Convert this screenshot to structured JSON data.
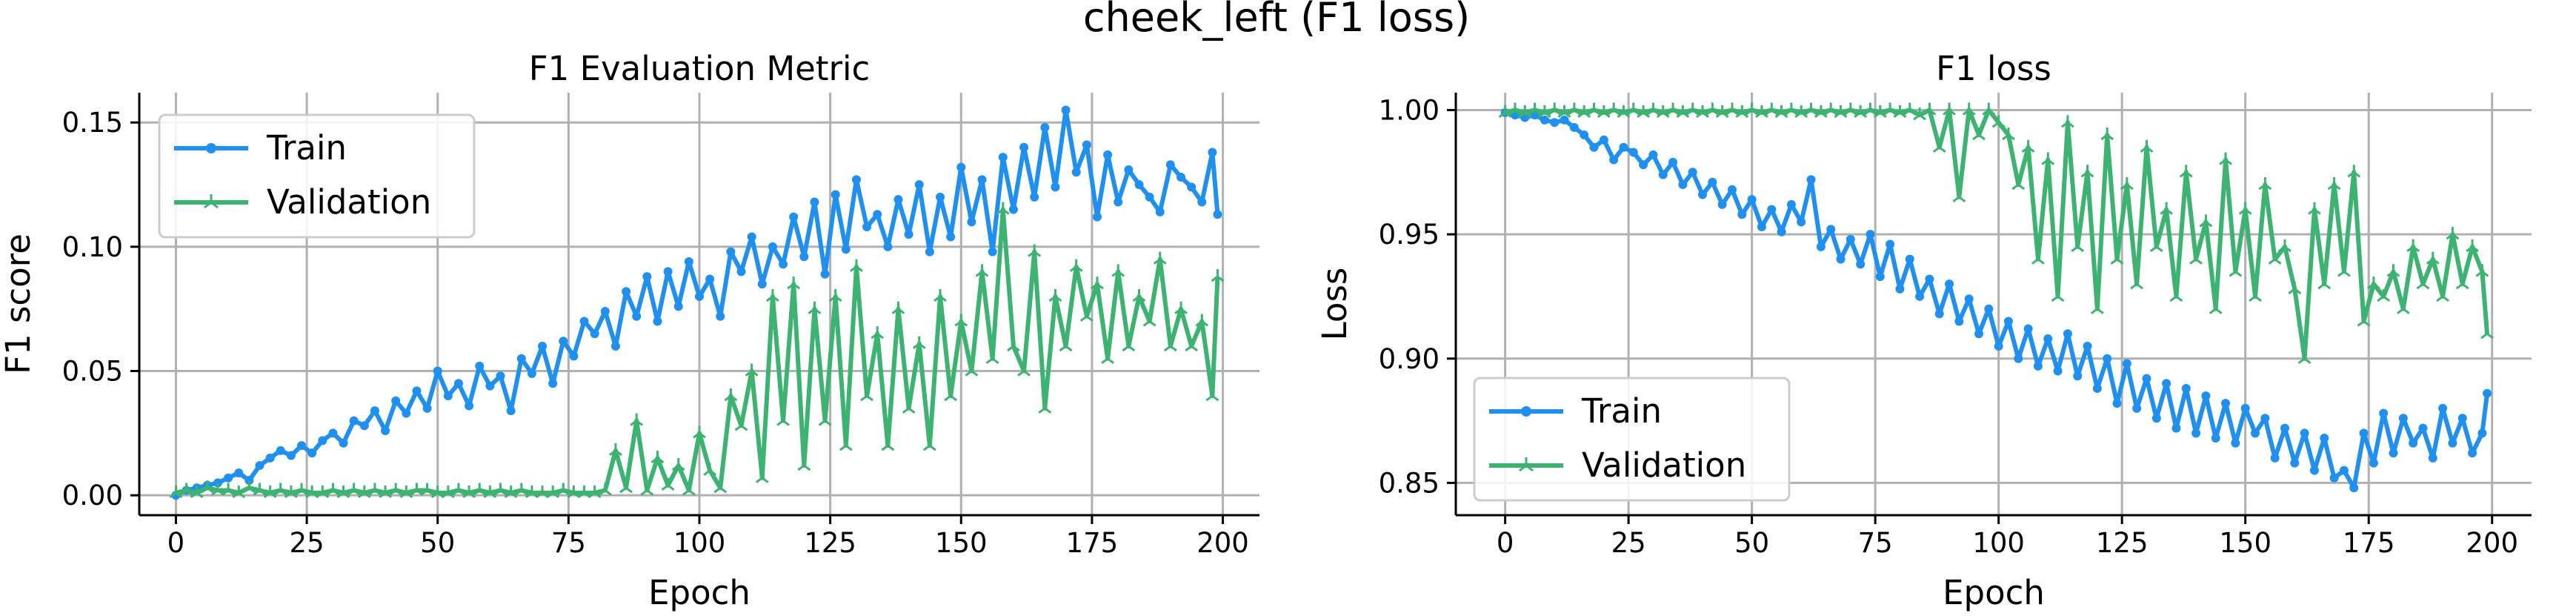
{
  "suptitle": "cheek_left (F1 loss)",
  "colors": {
    "train": "#2090f0",
    "validation": "#3cb371"
  },
  "chart_data": [
    {
      "type": "line",
      "title": "F1 Evaluation Metric",
      "xlabel": "Epoch",
      "ylabel": "F1 score",
      "xlim": [
        -7,
        207
      ],
      "ylim": [
        -0.008,
        0.162
      ],
      "xticks": [
        0,
        25,
        50,
        75,
        100,
        125,
        150,
        175,
        200
      ],
      "xtick_labels": [
        "0",
        "25",
        "50",
        "75",
        "100",
        "125",
        "150",
        "175",
        "200"
      ],
      "yticks": [
        0.0,
        0.05,
        0.1,
        0.15
      ],
      "ytick_labels": [
        "0.00",
        "0.05",
        "0.10",
        "0.15"
      ],
      "grid": true,
      "legend": {
        "placement": "upper-left",
        "entries": [
          "Train",
          "Validation"
        ]
      },
      "series": [
        {
          "name": "Train",
          "marker": "circle",
          "x": [
            0,
            2,
            4,
            6,
            8,
            10,
            12,
            14,
            16,
            18,
            20,
            22,
            24,
            26,
            28,
            30,
            32,
            34,
            36,
            38,
            40,
            42,
            44,
            46,
            48,
            50,
            52,
            54,
            56,
            58,
            60,
            62,
            64,
            66,
            68,
            70,
            72,
            74,
            76,
            78,
            80,
            82,
            84,
            86,
            88,
            90,
            92,
            94,
            96,
            98,
            100,
            102,
            104,
            106,
            108,
            110,
            112,
            114,
            116,
            118,
            120,
            122,
            124,
            126,
            128,
            130,
            132,
            134,
            136,
            138,
            140,
            142,
            144,
            146,
            148,
            150,
            152,
            154,
            156,
            158,
            160,
            162,
            164,
            166,
            168,
            170,
            172,
            174,
            176,
            178,
            180,
            182,
            184,
            186,
            188,
            190,
            192,
            194,
            196,
            198,
            199
          ],
          "y": [
            0.0,
            0.002,
            0.003,
            0.004,
            0.005,
            0.007,
            0.009,
            0.006,
            0.012,
            0.015,
            0.018,
            0.016,
            0.02,
            0.017,
            0.022,
            0.025,
            0.021,
            0.03,
            0.028,
            0.034,
            0.026,
            0.038,
            0.033,
            0.042,
            0.035,
            0.05,
            0.04,
            0.045,
            0.036,
            0.052,
            0.044,
            0.048,
            0.034,
            0.055,
            0.049,
            0.06,
            0.045,
            0.062,
            0.056,
            0.07,
            0.065,
            0.074,
            0.06,
            0.082,
            0.072,
            0.088,
            0.07,
            0.09,
            0.076,
            0.094,
            0.08,
            0.087,
            0.072,
            0.098,
            0.09,
            0.104,
            0.085,
            0.1,
            0.093,
            0.112,
            0.096,
            0.118,
            0.089,
            0.121,
            0.099,
            0.127,
            0.108,
            0.113,
            0.1,
            0.119,
            0.105,
            0.125,
            0.098,
            0.12,
            0.104,
            0.132,
            0.11,
            0.127,
            0.098,
            0.136,
            0.115,
            0.14,
            0.12,
            0.148,
            0.124,
            0.155,
            0.13,
            0.141,
            0.112,
            0.137,
            0.118,
            0.131,
            0.125,
            0.12,
            0.114,
            0.133,
            0.128,
            0.124,
            0.118,
            0.138,
            0.113
          ]
        },
        {
          "name": "Validation",
          "marker": "tri-up",
          "x": [
            0,
            2,
            4,
            6,
            8,
            10,
            12,
            14,
            16,
            18,
            20,
            22,
            24,
            26,
            28,
            30,
            32,
            34,
            36,
            38,
            40,
            42,
            44,
            46,
            48,
            50,
            52,
            54,
            56,
            58,
            60,
            62,
            64,
            66,
            68,
            70,
            72,
            74,
            76,
            78,
            80,
            82,
            84,
            86,
            88,
            90,
            92,
            94,
            96,
            98,
            100,
            102,
            104,
            106,
            108,
            110,
            112,
            114,
            116,
            118,
            120,
            122,
            124,
            126,
            128,
            130,
            132,
            134,
            136,
            138,
            140,
            142,
            144,
            146,
            148,
            150,
            152,
            154,
            156,
            158,
            160,
            162,
            164,
            166,
            168,
            170,
            172,
            174,
            176,
            178,
            180,
            182,
            184,
            186,
            188,
            190,
            192,
            194,
            196,
            198,
            199
          ],
          "y": [
            0.001,
            0.002,
            0.001,
            0.003,
            0.002,
            0.002,
            0.001,
            0.003,
            0.002,
            0.001,
            0.002,
            0.001,
            0.002,
            0.001,
            0.001,
            0.002,
            0.001,
            0.002,
            0.001,
            0.002,
            0.001,
            0.002,
            0.001,
            0.002,
            0.002,
            0.001,
            0.001,
            0.002,
            0.001,
            0.002,
            0.001,
            0.002,
            0.001,
            0.002,
            0.001,
            0.001,
            0.001,
            0.002,
            0.001,
            0.001,
            0.001,
            0.002,
            0.018,
            0.003,
            0.03,
            0.002,
            0.015,
            0.004,
            0.012,
            0.002,
            0.025,
            0.01,
            0.003,
            0.04,
            0.028,
            0.05,
            0.007,
            0.08,
            0.03,
            0.085,
            0.012,
            0.075,
            0.03,
            0.08,
            0.02,
            0.092,
            0.04,
            0.065,
            0.02,
            0.075,
            0.035,
            0.061,
            0.02,
            0.08,
            0.04,
            0.07,
            0.05,
            0.09,
            0.055,
            0.115,
            0.06,
            0.05,
            0.098,
            0.035,
            0.08,
            0.06,
            0.092,
            0.072,
            0.085,
            0.055,
            0.09,
            0.06,
            0.08,
            0.07,
            0.095,
            0.06,
            0.075,
            0.06,
            0.07,
            0.04,
            0.088
          ]
        }
      ]
    },
    {
      "type": "line",
      "title": "F1 loss",
      "xlabel": "Epoch",
      "ylabel": "Loss",
      "xlim": [
        -10,
        208
      ],
      "ylim": [
        0.837,
        1.007
      ],
      "xticks": [
        0,
        25,
        50,
        75,
        100,
        125,
        150,
        175,
        200
      ],
      "xtick_labels": [
        "0",
        "25",
        "50",
        "75",
        "100",
        "125",
        "150",
        "175",
        "200"
      ],
      "yticks": [
        0.85,
        0.9,
        0.95,
        1.0
      ],
      "ytick_labels": [
        "0.85",
        "0.90",
        "0.95",
        "1.00"
      ],
      "grid": true,
      "legend": {
        "placement": "lower-left",
        "entries": [
          "Train",
          "Validation"
        ]
      },
      "series": [
        {
          "name": "Train",
          "marker": "circle",
          "x": [
            0,
            2,
            4,
            6,
            8,
            10,
            12,
            14,
            16,
            18,
            20,
            22,
            24,
            26,
            28,
            30,
            32,
            34,
            36,
            38,
            40,
            42,
            44,
            46,
            48,
            50,
            52,
            54,
            56,
            58,
            60,
            62,
            64,
            66,
            68,
            70,
            72,
            74,
            76,
            78,
            80,
            82,
            84,
            86,
            88,
            90,
            92,
            94,
            96,
            98,
            100,
            102,
            104,
            106,
            108,
            110,
            112,
            114,
            116,
            118,
            120,
            122,
            124,
            126,
            128,
            130,
            132,
            134,
            136,
            138,
            140,
            142,
            144,
            146,
            148,
            150,
            152,
            154,
            156,
            158,
            160,
            162,
            164,
            166,
            168,
            170,
            172,
            174,
            176,
            178,
            180,
            182,
            184,
            186,
            188,
            190,
            192,
            194,
            196,
            198,
            199
          ],
          "y": [
            0.999,
            0.998,
            0.997,
            0.998,
            0.996,
            0.995,
            0.996,
            0.993,
            0.99,
            0.985,
            0.988,
            0.98,
            0.985,
            0.983,
            0.978,
            0.982,
            0.974,
            0.979,
            0.97,
            0.975,
            0.966,
            0.971,
            0.962,
            0.968,
            0.958,
            0.964,
            0.953,
            0.96,
            0.951,
            0.962,
            0.955,
            0.972,
            0.945,
            0.952,
            0.94,
            0.948,
            0.938,
            0.95,
            0.933,
            0.946,
            0.928,
            0.94,
            0.925,
            0.932,
            0.918,
            0.93,
            0.915,
            0.924,
            0.91,
            0.92,
            0.905,
            0.915,
            0.9,
            0.912,
            0.897,
            0.908,
            0.895,
            0.91,
            0.893,
            0.905,
            0.888,
            0.9,
            0.882,
            0.898,
            0.88,
            0.892,
            0.876,
            0.89,
            0.872,
            0.888,
            0.87,
            0.885,
            0.868,
            0.882,
            0.866,
            0.88,
            0.87,
            0.876,
            0.86,
            0.872,
            0.858,
            0.87,
            0.855,
            0.868,
            0.852,
            0.855,
            0.848,
            0.87,
            0.858,
            0.878,
            0.862,
            0.876,
            0.866,
            0.872,
            0.86,
            0.88,
            0.866,
            0.876,
            0.862,
            0.87,
            0.886
          ]
        },
        {
          "name": "Validation",
          "marker": "tri-up",
          "x": [
            0,
            2,
            4,
            6,
            8,
            10,
            12,
            14,
            16,
            18,
            20,
            22,
            24,
            26,
            28,
            30,
            32,
            34,
            36,
            38,
            40,
            42,
            44,
            46,
            48,
            50,
            52,
            54,
            56,
            58,
            60,
            62,
            64,
            66,
            68,
            70,
            72,
            74,
            76,
            78,
            80,
            82,
            84,
            86,
            88,
            90,
            92,
            94,
            96,
            98,
            100,
            102,
            104,
            106,
            108,
            110,
            112,
            114,
            116,
            118,
            120,
            122,
            124,
            126,
            128,
            130,
            132,
            134,
            136,
            138,
            140,
            142,
            144,
            146,
            148,
            150,
            152,
            154,
            156,
            158,
            160,
            162,
            164,
            166,
            168,
            170,
            172,
            174,
            176,
            178,
            180,
            182,
            184,
            186,
            188,
            190,
            192,
            194,
            196,
            198,
            199
          ],
          "y": [
            0.999,
            1.0,
            0.999,
            1.0,
            0.999,
            1.0,
            0.999,
            1.0,
            0.999,
            1.0,
            0.999,
            1.0,
            0.999,
            1.0,
            0.999,
            1.0,
            0.999,
            1.0,
            0.999,
            1.0,
            0.999,
            1.0,
            0.999,
            1.0,
            0.999,
            1.0,
            0.999,
            1.0,
            0.999,
            1.0,
            0.999,
            1.0,
            0.999,
            1.0,
            0.999,
            1.0,
            0.999,
            1.0,
            0.999,
            1.0,
            0.999,
            1.0,
            0.998,
            1.0,
            0.985,
            1.0,
            0.965,
            1.0,
            0.99,
            1.0,
            0.995,
            0.99,
            0.97,
            0.985,
            0.94,
            0.98,
            0.925,
            0.995,
            0.945,
            0.975,
            0.92,
            0.99,
            0.94,
            0.97,
            0.93,
            0.985,
            0.945,
            0.96,
            0.925,
            0.975,
            0.94,
            0.955,
            0.92,
            0.98,
            0.935,
            0.96,
            0.925,
            0.97,
            0.94,
            0.945,
            0.928,
            0.9,
            0.96,
            0.93,
            0.97,
            0.935,
            0.975,
            0.915,
            0.93,
            0.925,
            0.935,
            0.92,
            0.945,
            0.93,
            0.94,
            0.925,
            0.95,
            0.93,
            0.945,
            0.935,
            0.91
          ]
        }
      ]
    }
  ]
}
